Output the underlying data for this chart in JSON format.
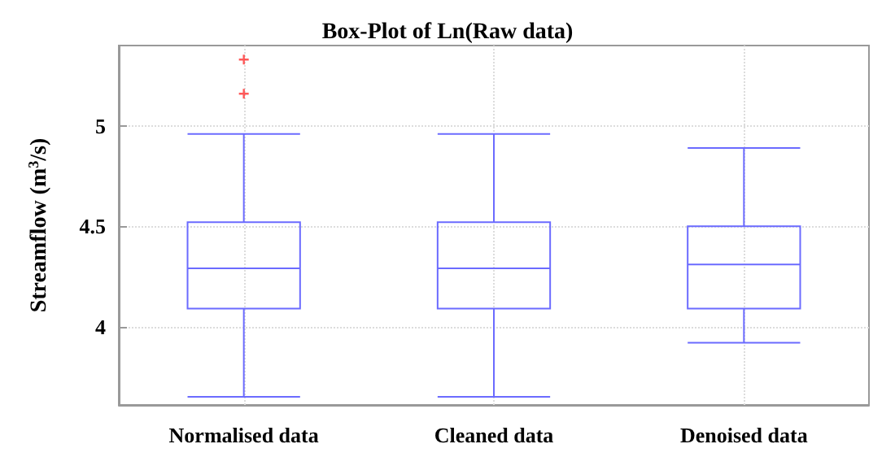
{
  "chart_data": {
    "type": "box",
    "title": "Box-Plot of Ln(Raw data)",
    "ylabel": "Streamflow (m$^{3}$/s)",
    "categories": [
      "Normalised data",
      "Cleaned data",
      "Denoised data"
    ],
    "series": [
      {
        "color": "#6b6bff",
        "boxes": [
          {
            "low": 3.65,
            "q1": 4.09,
            "median": 4.29,
            "q3": 4.52,
            "high": 4.96
          },
          {
            "low": 3.65,
            "q1": 4.09,
            "median": 4.29,
            "q3": 4.52,
            "high": 4.96
          },
          {
            "low": 3.92,
            "q1": 4.09,
            "median": 4.31,
            "q3": 4.5,
            "high": 4.89
          }
        ]
      },
      {
        "type": "scatter",
        "color": "#ff3030",
        "marker": "cross",
        "x": [
          "Normalised data",
          "Normalised data"
        ],
        "values": [
          5.33,
          5.16
        ]
      }
    ],
    "ylim": [
      3.61,
      5.4
    ],
    "yticks": [
      4,
      4.5,
      5
    ],
    "grid": true
  }
}
